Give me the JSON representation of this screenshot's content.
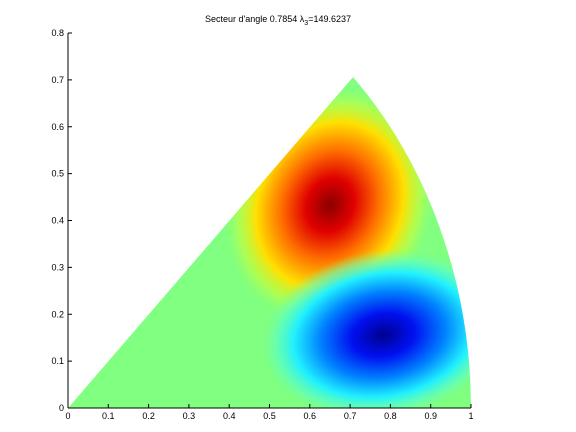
{
  "chart_data": {
    "type": "heatmap",
    "title": [
      "Secteur d'angle 0.7854  λ",
      "3",
      "=149.6237"
    ],
    "xlim": [
      0,
      1
    ],
    "xticks": [
      0,
      0.1,
      0.2,
      0.3,
      0.4,
      0.5,
      0.6,
      0.7,
      0.8,
      0.9,
      1
    ],
    "ylim": [
      0,
      0.8
    ],
    "yticks": [
      0,
      0.1,
      0.2,
      0.3,
      0.4,
      0.5,
      0.6,
      0.7,
      0.8
    ]
  }
}
